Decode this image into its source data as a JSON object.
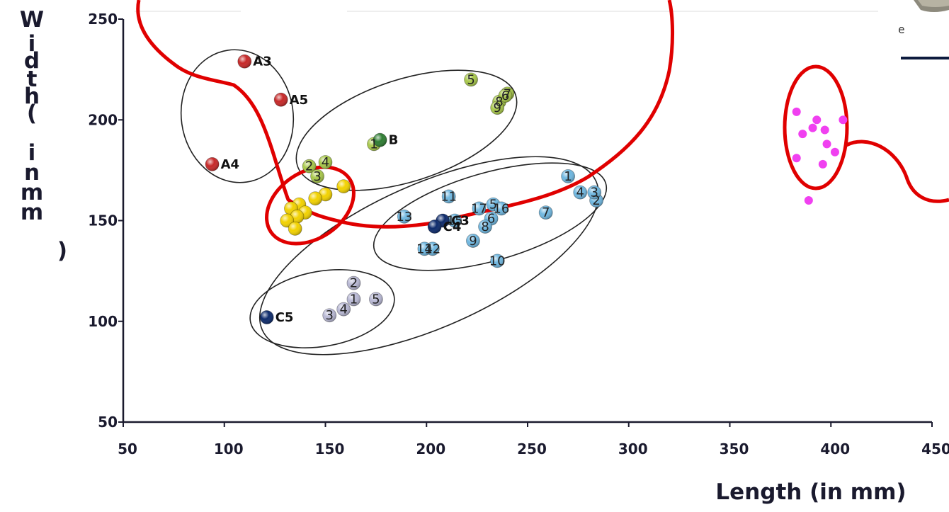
{
  "chart_data": {
    "type": "scatter",
    "xlabel": "Length (in mm)",
    "ylabel": "Width (in mm)",
    "xlim": [
      50,
      450
    ],
    "ylim": [
      50,
      250
    ],
    "xticks": [
      50,
      100,
      150,
      200,
      250,
      300,
      350,
      400,
      450
    ],
    "yticks": [
      50,
      100,
      150,
      200,
      250
    ],
    "corner_text": "e",
    "series": [
      {
        "color": "#c62828",
        "points": [
          {
            "x": 110,
            "y": 229,
            "label": "A3"
          },
          {
            "x": 128,
            "y": 210,
            "label": "A5"
          },
          {
            "x": 94,
            "y": 178,
            "label": "A4"
          }
        ]
      },
      {
        "color": "#a8c84a",
        "points": [
          {
            "x": 222,
            "y": 220,
            "label": "5"
          },
          {
            "x": 240,
            "y": 213,
            "label": "7"
          },
          {
            "x": 236,
            "y": 209,
            "label": "8"
          },
          {
            "x": 235,
            "y": 206,
            "label": "9"
          },
          {
            "x": 239,
            "y": 212,
            "label": "6"
          },
          {
            "x": 174,
            "y": 188,
            "label": "1"
          },
          {
            "x": 150,
            "y": 179,
            "label": "4"
          },
          {
            "x": 142,
            "y": 177,
            "label": "2"
          },
          {
            "x": 146,
            "y": 172,
            "label": "3"
          }
        ]
      },
      {
        "color": "#2e7d32",
        "points": [
          {
            "x": 177,
            "y": 190,
            "label": "B"
          }
        ]
      },
      {
        "color": "#f2d200",
        "points": [
          {
            "x": 159,
            "y": 167,
            "label": ""
          },
          {
            "x": 150,
            "y": 163,
            "label": ""
          },
          {
            "x": 145,
            "y": 161,
            "label": ""
          },
          {
            "x": 137,
            "y": 158,
            "label": ""
          },
          {
            "x": 133,
            "y": 156,
            "label": ""
          },
          {
            "x": 140,
            "y": 154,
            "label": ""
          },
          {
            "x": 136,
            "y": 152,
            "label": ""
          },
          {
            "x": 131,
            "y": 150,
            "label": ""
          },
          {
            "x": 135,
            "y": 146,
            "label": ""
          }
        ]
      },
      {
        "color": "#6fb7e0",
        "points": [
          {
            "x": 270,
            "y": 172,
            "label": "1"
          },
          {
            "x": 284,
            "y": 160,
            "label": "2"
          },
          {
            "x": 283,
            "y": 164,
            "label": "3"
          },
          {
            "x": 276,
            "y": 164,
            "label": "4"
          },
          {
            "x": 233,
            "y": 158,
            "label": "5"
          },
          {
            "x": 232,
            "y": 151,
            "label": "6"
          },
          {
            "x": 259,
            "y": 154,
            "label": "7"
          },
          {
            "x": 229,
            "y": 147,
            "label": "8"
          },
          {
            "x": 223,
            "y": 140,
            "label": "9"
          },
          {
            "x": 235,
            "y": 130,
            "label": "10"
          },
          {
            "x": 211,
            "y": 162,
            "label": "11"
          },
          {
            "x": 203,
            "y": 136,
            "label": "12"
          },
          {
            "x": 189,
            "y": 152,
            "label": "13"
          },
          {
            "x": 199,
            "y": 136,
            "label": "14"
          },
          {
            "x": 214,
            "y": 150,
            "label": "15"
          },
          {
            "x": 237,
            "y": 156,
            "label": "16"
          },
          {
            "x": 226,
            "y": 156,
            "label": "17"
          }
        ]
      },
      {
        "color": "#0d2a6b",
        "points": [
          {
            "x": 208,
            "y": 150,
            "label": "C3"
          },
          {
            "x": 204,
            "y": 147,
            "label": "C4"
          },
          {
            "x": 121,
            "y": 102,
            "label": "C5"
          }
        ]
      },
      {
        "color": "#b8b8d4",
        "points": [
          {
            "x": 164,
            "y": 119,
            "label": "2"
          },
          {
            "x": 164,
            "y": 111,
            "label": "1"
          },
          {
            "x": 175,
            "y": 111,
            "label": "5"
          },
          {
            "x": 159,
            "y": 106,
            "label": "4"
          },
          {
            "x": 152,
            "y": 103,
            "label": "3"
          }
        ]
      },
      {
        "color": "#f040f0",
        "points": [
          {
            "x": 389,
            "y": 160
          },
          {
            "x": 391,
            "y": 196
          },
          {
            "x": 386,
            "y": 193
          },
          {
            "x": 393,
            "y": 200
          },
          {
            "x": 397,
            "y": 195
          },
          {
            "x": 406,
            "y": 200
          },
          {
            "x": 398,
            "y": 188
          },
          {
            "x": 396,
            "y": 178
          },
          {
            "x": 402,
            "y": 184
          },
          {
            "x": 383,
            "y": 204
          },
          {
            "x": 383,
            "y": 181
          }
        ]
      }
    ]
  }
}
